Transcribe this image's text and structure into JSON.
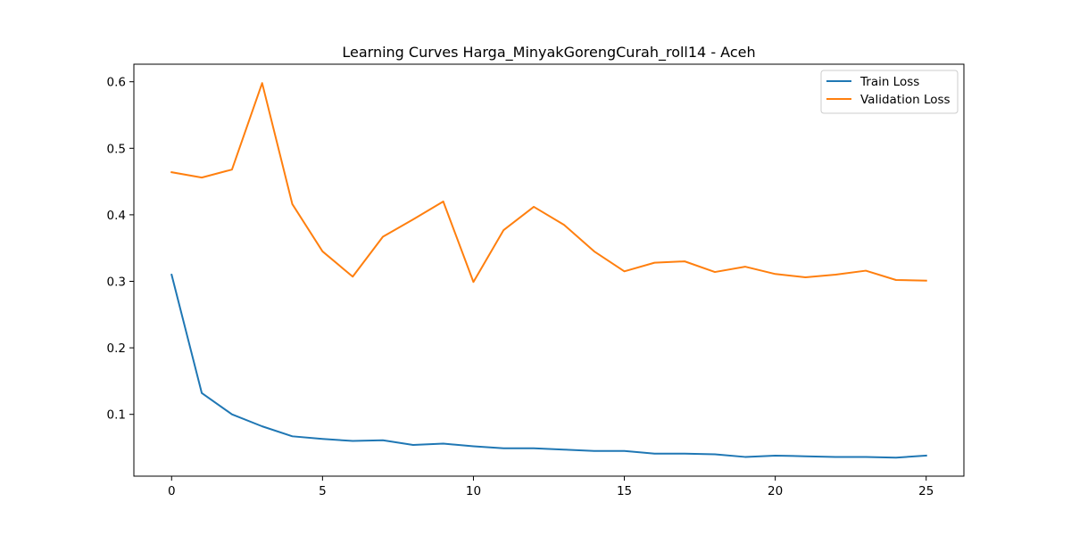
{
  "chart_data": {
    "type": "line",
    "title": "Learning Curves Harga_MinyakGorengCurah_roll14 - Aceh",
    "xlabel": "",
    "ylabel": "",
    "xlim": [
      -1.25,
      26.25
    ],
    "ylim": [
      0.0071,
      0.6264
    ],
    "xticks": [
      0,
      5,
      10,
      15,
      20,
      25
    ],
    "yticks": [
      0.1,
      0.2,
      0.3,
      0.4,
      0.5,
      0.6
    ],
    "grid": false,
    "legend_position": "top-right",
    "x": [
      0,
      1,
      2,
      3,
      4,
      5,
      6,
      7,
      8,
      9,
      10,
      11,
      12,
      13,
      14,
      15,
      16,
      17,
      18,
      19,
      20,
      21,
      22,
      23,
      24,
      25
    ],
    "series": [
      {
        "name": "Train Loss",
        "color": "#1f77b4",
        "values": [
          0.31,
          0.132,
          0.1,
          0.082,
          0.067,
          0.063,
          0.06,
          0.061,
          0.054,
          0.056,
          0.052,
          0.049,
          0.049,
          0.047,
          0.045,
          0.045,
          0.041,
          0.041,
          0.04,
          0.036,
          0.038,
          0.037,
          0.036,
          0.036,
          0.035,
          0.038
        ]
      },
      {
        "name": "Validation Loss",
        "color": "#ff7f0e",
        "values": [
          0.464,
          0.456,
          0.468,
          0.598,
          0.416,
          0.345,
          0.307,
          0.367,
          0.393,
          0.42,
          0.299,
          0.377,
          0.412,
          0.385,
          0.345,
          0.315,
          0.328,
          0.33,
          0.314,
          0.322,
          0.311,
          0.306,
          0.31,
          0.316,
          0.302,
          0.301
        ]
      }
    ]
  }
}
